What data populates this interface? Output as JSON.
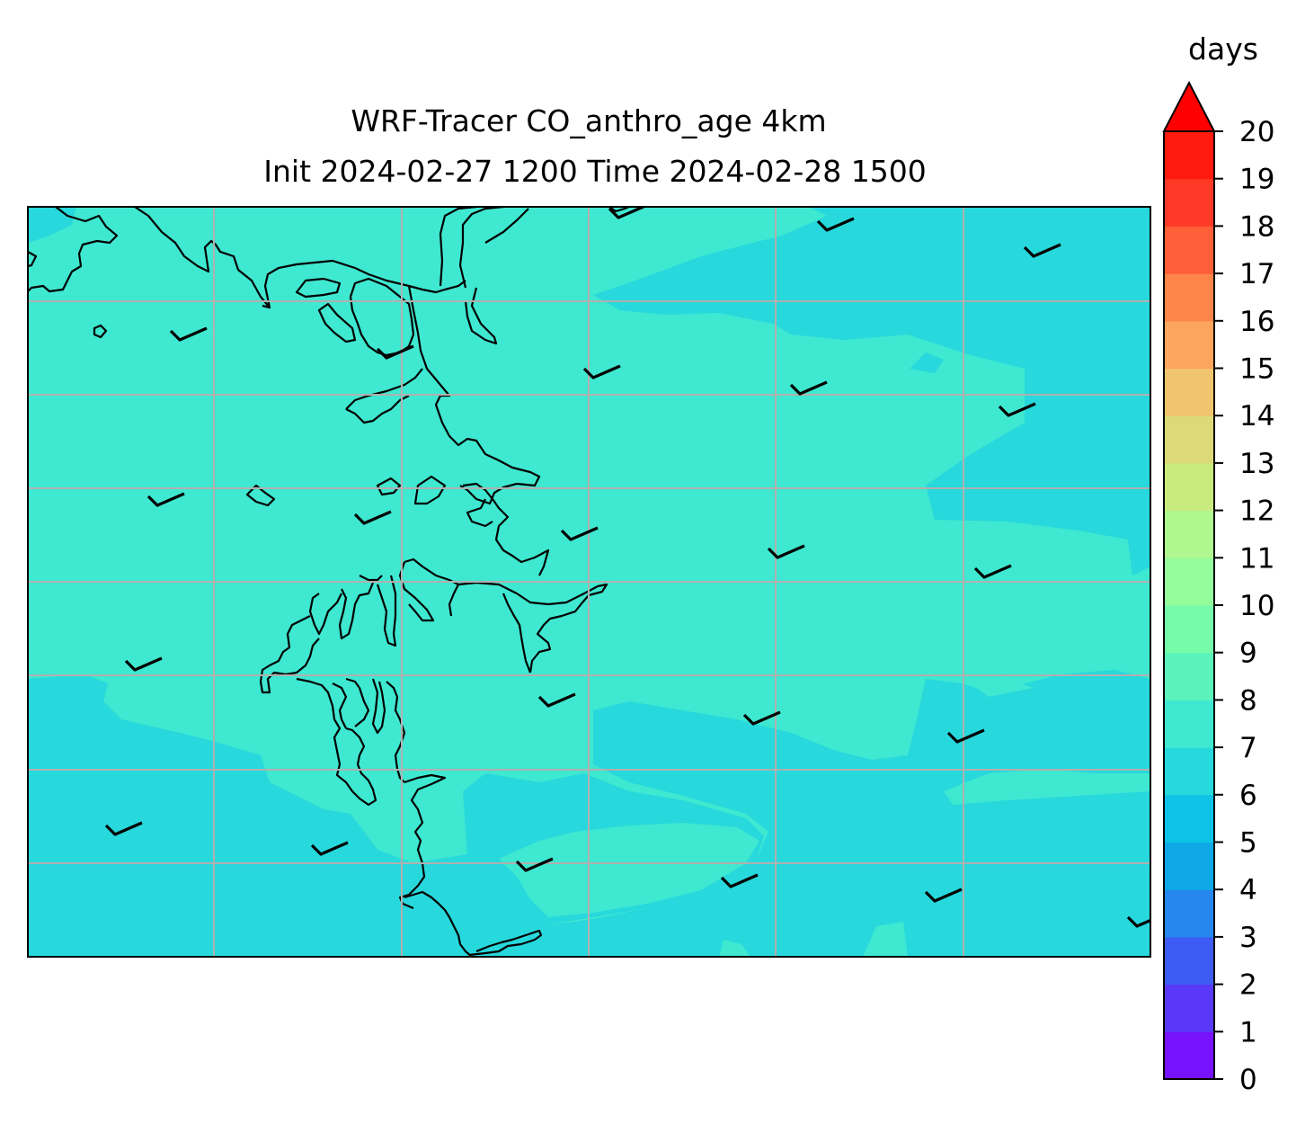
{
  "title": {
    "line1": "WRF-Tracer CO_anthro_age 4km",
    "line2": "Init 2024-02-27 1200 Time 2024-02-28 1500"
  },
  "colorbar": {
    "label": "days",
    "ticks": [
      "0",
      "1",
      "2",
      "3",
      "4",
      "5",
      "6",
      "7",
      "8",
      "9",
      "10",
      "11",
      "12",
      "13",
      "14",
      "15",
      "16",
      "17",
      "18",
      "19",
      "20"
    ],
    "min": 0,
    "max": 20,
    "extend": "max",
    "colors": [
      "#7612fc",
      "#5a38fa",
      "#3f5bf5",
      "#2586ee",
      "#0da8e5",
      "#0ec2e8",
      "#27d8dc",
      "#3fe8d0",
      "#5bf3bb",
      "#75fbaa",
      "#94fc9b",
      "#aff88f",
      "#c8ea7f",
      "#dcd97a",
      "#f1c46e",
      "#fca55c",
      "#fe854a",
      "#fe5f39",
      "#fe3a26",
      "#ff1a10"
    ],
    "extend_color": "#ff0000"
  },
  "map": {
    "gridlines": "on",
    "background_value_days": "6-7",
    "dominant_value_days": "7-8"
  }
}
